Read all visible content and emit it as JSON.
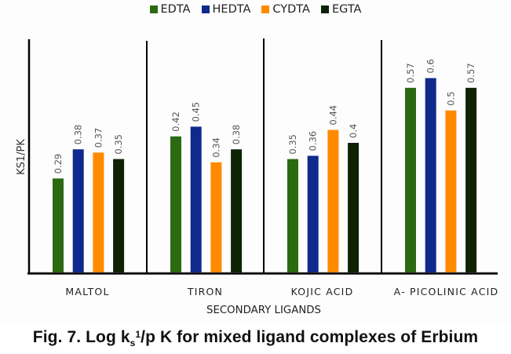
{
  "chart_data": {
    "type": "bar",
    "title": "",
    "xlabel": "SECONDARY LIGANDS",
    "ylabel": "KS1/PK",
    "ylim": [
      0,
      0.72
    ],
    "grid": false,
    "legend_position": "top-center",
    "categories": [
      "MALTOL",
      "TIRON",
      "KOJIC  ACID",
      "A-  PICOLINIC  ACID"
    ],
    "series": [
      {
        "name": "EDTA",
        "color": "#2b6a11",
        "values": [
          0.29,
          0.42,
          0.35,
          0.57
        ],
        "labels": [
          "0.29",
          "0.42",
          "0.35",
          "0.57"
        ]
      },
      {
        "name": "HEDTA",
        "color": "#0f2a8c",
        "values": [
          0.38,
          0.45,
          0.36,
          0.6
        ],
        "labels": [
          "0.38",
          "0.45",
          "0.36",
          "0.6"
        ]
      },
      {
        "name": "CYDTA",
        "color": "#ff8a00",
        "values": [
          0.37,
          0.34,
          0.44,
          0.5
        ],
        "labels": [
          "0.37",
          "0.34",
          "0.44",
          "0.5"
        ]
      },
      {
        "name": "EGTA",
        "color": "#0e2306",
        "values": [
          0.35,
          0.38,
          0.4,
          0.57
        ],
        "labels": [
          "0.35",
          "0.38",
          "0.4",
          "0.57"
        ]
      }
    ]
  },
  "caption": {
    "prefix": "Fig. 7. Log k",
    "subscript": "s",
    "superscript": "1",
    "suffix": "/p K for mixed ligand complexes of Erbium"
  }
}
